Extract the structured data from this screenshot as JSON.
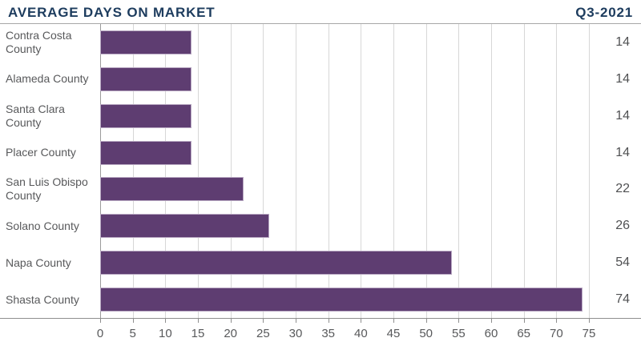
{
  "header": {
    "title": "AVERAGE DAYS ON MARKET",
    "period": "Q3-2021"
  },
  "chart_data": {
    "type": "bar",
    "orientation": "horizontal",
    "title": "AVERAGE DAYS ON MARKET",
    "subtitle": "Q3-2021",
    "categories": [
      "Contra Costa County",
      "Alameda County",
      "Santa Clara County",
      "Placer County",
      "San Luis Obispo County",
      "Solano County",
      "Napa County",
      "Shasta County"
    ],
    "values": [
      14,
      14,
      14,
      14,
      22,
      26,
      54,
      74
    ],
    "value_labels": [
      "14",
      "14",
      "14",
      "14",
      "22",
      "26",
      "54",
      "74"
    ],
    "xlabel": "",
    "ylabel": "",
    "xlim": [
      0,
      75
    ],
    "x_ticks": [
      0,
      5,
      10,
      15,
      20,
      25,
      30,
      35,
      40,
      45,
      50,
      55,
      60,
      65,
      70,
      75
    ],
    "grid": "vertical",
    "legend": "none",
    "colors": {
      "bar": "#5e3d71",
      "title_text": "#1d3c5e",
      "label_text": "#58595b",
      "value_text": "#4f5052",
      "gridline": "#d7d7d7",
      "zero_line": "#9b9b9b",
      "axis_line": "#8e8e8e",
      "background": "#ffffff"
    }
  }
}
